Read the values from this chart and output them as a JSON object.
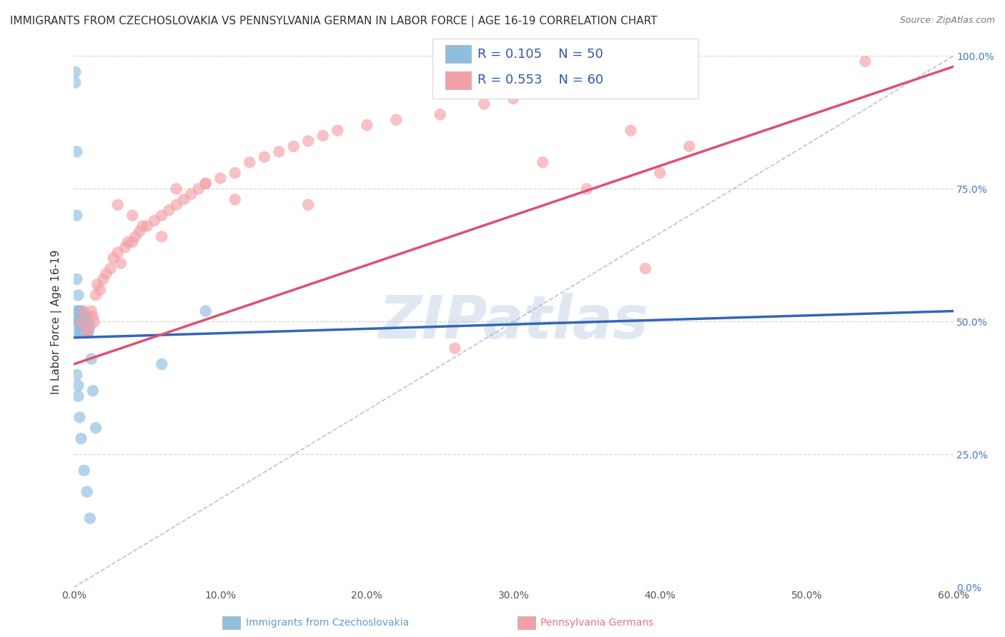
{
  "title": "IMMIGRANTS FROM CZECHOSLOVAKIA VS PENNSYLVANIA GERMAN IN LABOR FORCE | AGE 16-19 CORRELATION CHART",
  "source": "Source: ZipAtlas.com",
  "ylabel": "In Labor Force | Age 16-19",
  "xmin": 0.0,
  "xmax": 0.6,
  "ymin": 0.0,
  "ymax": 1.0,
  "right_yticks": [
    0.0,
    0.25,
    0.5,
    0.75,
    1.0
  ],
  "right_yticklabels": [
    "0.0%",
    "25.0%",
    "50.0%",
    "75.0%",
    "100.0%"
  ],
  "bottom_xticks": [
    0.0,
    0.1,
    0.2,
    0.3,
    0.4,
    0.5,
    0.6
  ],
  "bottom_xticklabels": [
    "0.0%",
    "10.0%",
    "20.0%",
    "30.0%",
    "40.0%",
    "50.0%",
    "60.0%"
  ],
  "color_blue": "#90bede",
  "color_pink": "#f4a0a8",
  "color_trend_blue": "#3366bb",
  "color_trend_pink": "#e05070",
  "color_diagonal": "#aaaacc",
  "blue_scatter_x": [
    0.001,
    0.001,
    0.002,
    0.002,
    0.002,
    0.002,
    0.003,
    0.003,
    0.003,
    0.003,
    0.003,
    0.004,
    0.004,
    0.004,
    0.004,
    0.004,
    0.005,
    0.005,
    0.005,
    0.005,
    0.005,
    0.006,
    0.006,
    0.006,
    0.006,
    0.007,
    0.007,
    0.007,
    0.007,
    0.008,
    0.008,
    0.008,
    0.009,
    0.009,
    0.01,
    0.01,
    0.011,
    0.012,
    0.013,
    0.015,
    0.002,
    0.003,
    0.003,
    0.004,
    0.005,
    0.007,
    0.009,
    0.011,
    0.06,
    0.09
  ],
  "blue_scatter_y": [
    0.97,
    0.95,
    0.82,
    0.7,
    0.58,
    0.52,
    0.55,
    0.52,
    0.5,
    0.5,
    0.48,
    0.52,
    0.51,
    0.5,
    0.49,
    0.48,
    0.52,
    0.51,
    0.5,
    0.49,
    0.48,
    0.51,
    0.5,
    0.49,
    0.48,
    0.51,
    0.5,
    0.49,
    0.48,
    0.51,
    0.5,
    0.48,
    0.51,
    0.48,
    0.5,
    0.48,
    0.49,
    0.43,
    0.37,
    0.3,
    0.4,
    0.38,
    0.36,
    0.32,
    0.28,
    0.22,
    0.18,
    0.13,
    0.42,
    0.52
  ],
  "pink_scatter_x": [
    0.005,
    0.007,
    0.009,
    0.01,
    0.012,
    0.013,
    0.014,
    0.015,
    0.016,
    0.018,
    0.02,
    0.022,
    0.025,
    0.027,
    0.03,
    0.032,
    0.035,
    0.037,
    0.04,
    0.042,
    0.045,
    0.047,
    0.05,
    0.055,
    0.06,
    0.065,
    0.07,
    0.075,
    0.08,
    0.085,
    0.09,
    0.1,
    0.11,
    0.12,
    0.13,
    0.14,
    0.15,
    0.16,
    0.17,
    0.18,
    0.2,
    0.22,
    0.25,
    0.28,
    0.3,
    0.32,
    0.35,
    0.38,
    0.4,
    0.42,
    0.03,
    0.04,
    0.06,
    0.07,
    0.09,
    0.11,
    0.16,
    0.26,
    0.39,
    0.54
  ],
  "pink_scatter_y": [
    0.5,
    0.52,
    0.48,
    0.49,
    0.52,
    0.51,
    0.5,
    0.55,
    0.57,
    0.56,
    0.58,
    0.59,
    0.6,
    0.62,
    0.63,
    0.61,
    0.64,
    0.65,
    0.65,
    0.66,
    0.67,
    0.68,
    0.68,
    0.69,
    0.7,
    0.71,
    0.72,
    0.73,
    0.74,
    0.75,
    0.76,
    0.77,
    0.78,
    0.8,
    0.81,
    0.82,
    0.83,
    0.84,
    0.85,
    0.86,
    0.87,
    0.88,
    0.89,
    0.91,
    0.92,
    0.8,
    0.75,
    0.86,
    0.78,
    0.83,
    0.72,
    0.7,
    0.66,
    0.75,
    0.76,
    0.73,
    0.72,
    0.45,
    0.6,
    0.99
  ],
  "background_color": "#ffffff",
  "grid_color": "#cccccc",
  "title_fontsize": 11,
  "axis_label_fontsize": 11,
  "tick_fontsize": 10,
  "legend_fontsize": 13,
  "watermark": "ZIPatlas",
  "watermark_color": "#b8cce4",
  "watermark_alpha": 0.45
}
